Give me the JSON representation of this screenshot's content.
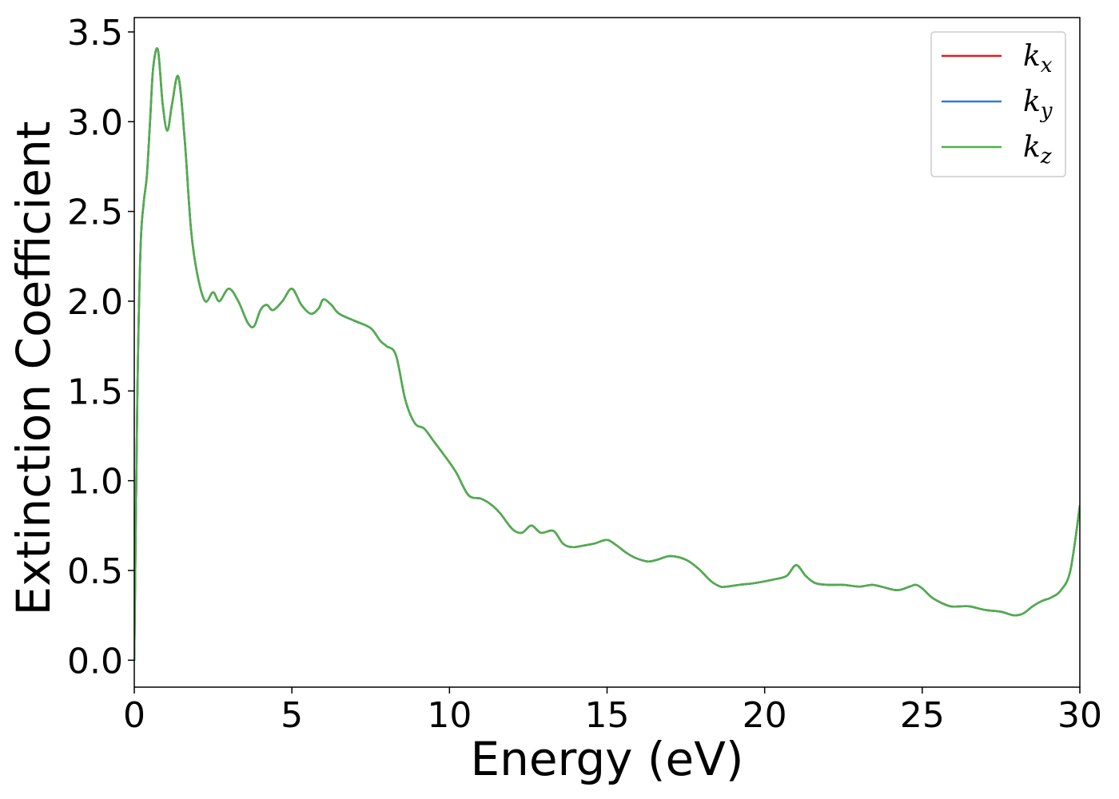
{
  "chart_data": {
    "type": "line",
    "xlabel": "Energy (eV)",
    "ylabel": "Extinction Coefficient",
    "xlim": [
      0,
      30
    ],
    "ylim": [
      -0.15,
      3.58
    ],
    "xticks": [
      "0",
      "5",
      "10",
      "15",
      "20",
      "25",
      "30"
    ],
    "yticks": [
      "0.0",
      "0.5",
      "1.0",
      "1.5",
      "2.0",
      "2.5",
      "3.0",
      "3.5"
    ],
    "grid": false,
    "legend_position": "top-right",
    "series": [
      {
        "name": "k",
        "subscript": "x",
        "color": "#e41a1c",
        "x": [
          0,
          0.1,
          0.2,
          0.3,
          0.4,
          0.5,
          0.6,
          0.75,
          0.9,
          1.05,
          1.2,
          1.4,
          1.6,
          1.8,
          2.0,
          2.25,
          2.5,
          2.7,
          3.0,
          3.3,
          3.6,
          3.8,
          4.0,
          4.2,
          4.4,
          4.7,
          5.0,
          5.3,
          5.6,
          5.85,
          6.0,
          6.25,
          6.5,
          7.0,
          7.5,
          7.8,
          8.0,
          8.3,
          8.6,
          8.9,
          9.2,
          9.5,
          9.8,
          10.2,
          10.6,
          11.0,
          11.3,
          11.6,
          12.0,
          12.3,
          12.6,
          12.9,
          13.3,
          13.6,
          13.9,
          14.3,
          14.6,
          15.0,
          15.3,
          15.6,
          15.9,
          16.3,
          16.6,
          17.0,
          17.5,
          17.9,
          18.3,
          18.6,
          18.8,
          19.2,
          19.7,
          20.3,
          20.7,
          21.0,
          21.3,
          21.6,
          22.0,
          22.5,
          23.0,
          23.4,
          23.7,
          24.2,
          24.6,
          24.8,
          25.0,
          25.3,
          25.6,
          25.9,
          26.2,
          26.5,
          27.0,
          27.5,
          27.9,
          28.2,
          28.5,
          28.8,
          29.1,
          29.4,
          29.7,
          30.0
        ],
        "y": [
          0.0,
          1.5,
          2.3,
          2.55,
          2.7,
          3.0,
          3.3,
          3.4,
          3.1,
          2.95,
          3.1,
          3.25,
          2.9,
          2.4,
          2.15,
          2.0,
          2.05,
          2.0,
          2.07,
          2.0,
          1.88,
          1.86,
          1.95,
          1.98,
          1.95,
          2.0,
          2.07,
          1.98,
          1.93,
          1.96,
          2.01,
          1.98,
          1.93,
          1.89,
          1.85,
          1.78,
          1.75,
          1.7,
          1.45,
          1.32,
          1.29,
          1.22,
          1.15,
          1.05,
          0.92,
          0.9,
          0.87,
          0.82,
          0.73,
          0.71,
          0.75,
          0.71,
          0.72,
          0.65,
          0.63,
          0.64,
          0.65,
          0.67,
          0.64,
          0.6,
          0.57,
          0.55,
          0.56,
          0.58,
          0.56,
          0.51,
          0.44,
          0.41,
          0.41,
          0.42,
          0.43,
          0.45,
          0.47,
          0.53,
          0.47,
          0.43,
          0.42,
          0.42,
          0.41,
          0.42,
          0.41,
          0.39,
          0.41,
          0.42,
          0.4,
          0.35,
          0.32,
          0.3,
          0.3,
          0.3,
          0.28,
          0.27,
          0.25,
          0.26,
          0.3,
          0.33,
          0.35,
          0.39,
          0.5,
          0.86
        ]
      },
      {
        "name": "k",
        "subscript": "y",
        "color": "#377eb8",
        "x": [
          0,
          0.1,
          0.2,
          0.3,
          0.4,
          0.5,
          0.6,
          0.75,
          0.9,
          1.05,
          1.2,
          1.4,
          1.6,
          1.8,
          2.0,
          2.25,
          2.5,
          2.7,
          3.0,
          3.3,
          3.6,
          3.8,
          4.0,
          4.2,
          4.4,
          4.7,
          5.0,
          5.3,
          5.6,
          5.85,
          6.0,
          6.25,
          6.5,
          7.0,
          7.5,
          7.8,
          8.0,
          8.3,
          8.6,
          8.9,
          9.2,
          9.5,
          9.8,
          10.2,
          10.6,
          11.0,
          11.3,
          11.6,
          12.0,
          12.3,
          12.6,
          12.9,
          13.3,
          13.6,
          13.9,
          14.3,
          14.6,
          15.0,
          15.3,
          15.6,
          15.9,
          16.3,
          16.6,
          17.0,
          17.5,
          17.9,
          18.3,
          18.6,
          18.8,
          19.2,
          19.7,
          20.3,
          20.7,
          21.0,
          21.3,
          21.6,
          22.0,
          22.5,
          23.0,
          23.4,
          23.7,
          24.2,
          24.6,
          24.8,
          25.0,
          25.3,
          25.6,
          25.9,
          26.2,
          26.5,
          27.0,
          27.5,
          27.9,
          28.2,
          28.5,
          28.8,
          29.1,
          29.4,
          29.7,
          30.0
        ],
        "y": [
          0.0,
          1.5,
          2.3,
          2.55,
          2.7,
          3.0,
          3.3,
          3.4,
          3.1,
          2.95,
          3.1,
          3.25,
          2.9,
          2.4,
          2.15,
          2.0,
          2.05,
          2.0,
          2.07,
          2.0,
          1.88,
          1.86,
          1.95,
          1.98,
          1.95,
          2.0,
          2.07,
          1.98,
          1.93,
          1.96,
          2.01,
          1.98,
          1.93,
          1.89,
          1.85,
          1.78,
          1.75,
          1.7,
          1.45,
          1.32,
          1.29,
          1.22,
          1.15,
          1.05,
          0.92,
          0.9,
          0.87,
          0.82,
          0.73,
          0.71,
          0.75,
          0.71,
          0.72,
          0.65,
          0.63,
          0.64,
          0.65,
          0.67,
          0.64,
          0.6,
          0.57,
          0.55,
          0.56,
          0.58,
          0.56,
          0.51,
          0.44,
          0.41,
          0.41,
          0.42,
          0.43,
          0.45,
          0.47,
          0.53,
          0.47,
          0.43,
          0.42,
          0.42,
          0.41,
          0.42,
          0.41,
          0.39,
          0.41,
          0.42,
          0.4,
          0.35,
          0.32,
          0.3,
          0.3,
          0.3,
          0.28,
          0.27,
          0.25,
          0.26,
          0.3,
          0.33,
          0.35,
          0.39,
          0.5,
          0.86
        ]
      },
      {
        "name": "k",
        "subscript": "z",
        "color": "#4daf4a",
        "x": [
          0,
          0.1,
          0.2,
          0.3,
          0.4,
          0.5,
          0.6,
          0.75,
          0.9,
          1.05,
          1.2,
          1.4,
          1.6,
          1.8,
          2.0,
          2.25,
          2.5,
          2.7,
          3.0,
          3.3,
          3.6,
          3.8,
          4.0,
          4.2,
          4.4,
          4.7,
          5.0,
          5.3,
          5.6,
          5.85,
          6.0,
          6.25,
          6.5,
          7.0,
          7.5,
          7.8,
          8.0,
          8.3,
          8.6,
          8.9,
          9.2,
          9.5,
          9.8,
          10.2,
          10.6,
          11.0,
          11.3,
          11.6,
          12.0,
          12.3,
          12.6,
          12.9,
          13.3,
          13.6,
          13.9,
          14.3,
          14.6,
          15.0,
          15.3,
          15.6,
          15.9,
          16.3,
          16.6,
          17.0,
          17.5,
          17.9,
          18.3,
          18.6,
          18.8,
          19.2,
          19.7,
          20.3,
          20.7,
          21.0,
          21.3,
          21.6,
          22.0,
          22.5,
          23.0,
          23.4,
          23.7,
          24.2,
          24.6,
          24.8,
          25.0,
          25.3,
          25.6,
          25.9,
          26.2,
          26.5,
          27.0,
          27.5,
          27.9,
          28.2,
          28.5,
          28.8,
          29.1,
          29.4,
          29.7,
          30.0
        ],
        "y": [
          0.0,
          1.5,
          2.3,
          2.55,
          2.7,
          3.0,
          3.3,
          3.4,
          3.1,
          2.95,
          3.1,
          3.25,
          2.9,
          2.4,
          2.15,
          2.0,
          2.05,
          2.0,
          2.07,
          2.0,
          1.88,
          1.86,
          1.95,
          1.98,
          1.95,
          2.0,
          2.07,
          1.98,
          1.93,
          1.96,
          2.01,
          1.98,
          1.93,
          1.89,
          1.85,
          1.78,
          1.75,
          1.7,
          1.45,
          1.32,
          1.29,
          1.22,
          1.15,
          1.05,
          0.92,
          0.9,
          0.87,
          0.82,
          0.73,
          0.71,
          0.75,
          0.71,
          0.72,
          0.65,
          0.63,
          0.64,
          0.65,
          0.67,
          0.64,
          0.6,
          0.57,
          0.55,
          0.56,
          0.58,
          0.56,
          0.51,
          0.44,
          0.41,
          0.41,
          0.42,
          0.43,
          0.45,
          0.47,
          0.53,
          0.47,
          0.43,
          0.42,
          0.42,
          0.41,
          0.42,
          0.41,
          0.39,
          0.41,
          0.42,
          0.4,
          0.35,
          0.32,
          0.3,
          0.3,
          0.3,
          0.28,
          0.27,
          0.25,
          0.26,
          0.3,
          0.33,
          0.35,
          0.39,
          0.5,
          0.86
        ]
      }
    ]
  }
}
